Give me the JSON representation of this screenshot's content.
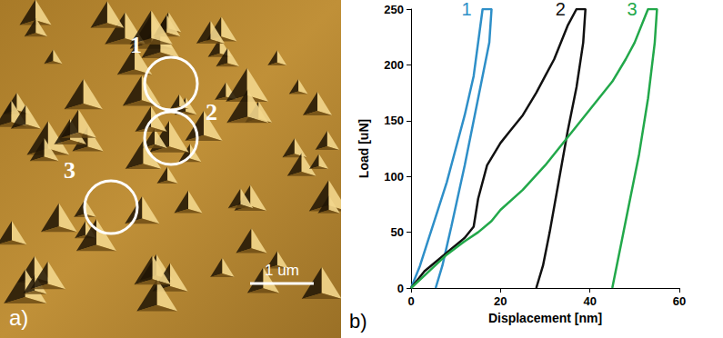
{
  "chart_data": {
    "type": "line",
    "x_label": "Displacement [nm]",
    "y_label": "Load [uN]",
    "annotations": [
      "b)"
    ],
    "xlim": [
      0,
      60
    ],
    "xticks": [
      0,
      20,
      40,
      60
    ],
    "ylim": [
      0,
      250
    ],
    "yticks": [
      0,
      50,
      100,
      150,
      200,
      250
    ],
    "grid": false,
    "series": [
      {
        "name": "1",
        "color": "#2e8fc8",
        "x": [
          0,
          2,
          4,
          6,
          8,
          10,
          12,
          14,
          16,
          18,
          17.5,
          15,
          12,
          9,
          7,
          5.5
        ],
        "values": [
          0,
          20,
          45,
          70,
          95,
          125,
          155,
          190,
          250,
          250,
          220,
          170,
          110,
          55,
          20,
          0
        ]
      },
      {
        "name": "2",
        "color": "#111111",
        "x": [
          0,
          3,
          6,
          9,
          12,
          14,
          15,
          17,
          20,
          22,
          25,
          28,
          30,
          32,
          33,
          35,
          37,
          39,
          38.5,
          37,
          35,
          33,
          31,
          29.5,
          28
        ],
        "values": [
          0,
          15,
          25,
          35,
          45,
          55,
          80,
          110,
          130,
          140,
          155,
          175,
          190,
          205,
          215,
          235,
          250,
          250,
          220,
          180,
          140,
          95,
          50,
          20,
          0
        ]
      },
      {
        "name": "3",
        "color": "#22a84a",
        "x": [
          0,
          4,
          8,
          12,
          15,
          18,
          20,
          25,
          30,
          35,
          40,
          45,
          48,
          50,
          52,
          53,
          55,
          54.5,
          53,
          51,
          49,
          47,
          46,
          45
        ],
        "values": [
          0,
          15,
          30,
          42,
          50,
          60,
          70,
          88,
          110,
          135,
          160,
          185,
          205,
          220,
          240,
          250,
          250,
          220,
          170,
          120,
          80,
          40,
          20,
          0
        ]
      }
    ]
  },
  "image_panel": {
    "label": "a)",
    "scale_bar": "1 um",
    "markers": [
      "1",
      "2",
      "3"
    ]
  }
}
